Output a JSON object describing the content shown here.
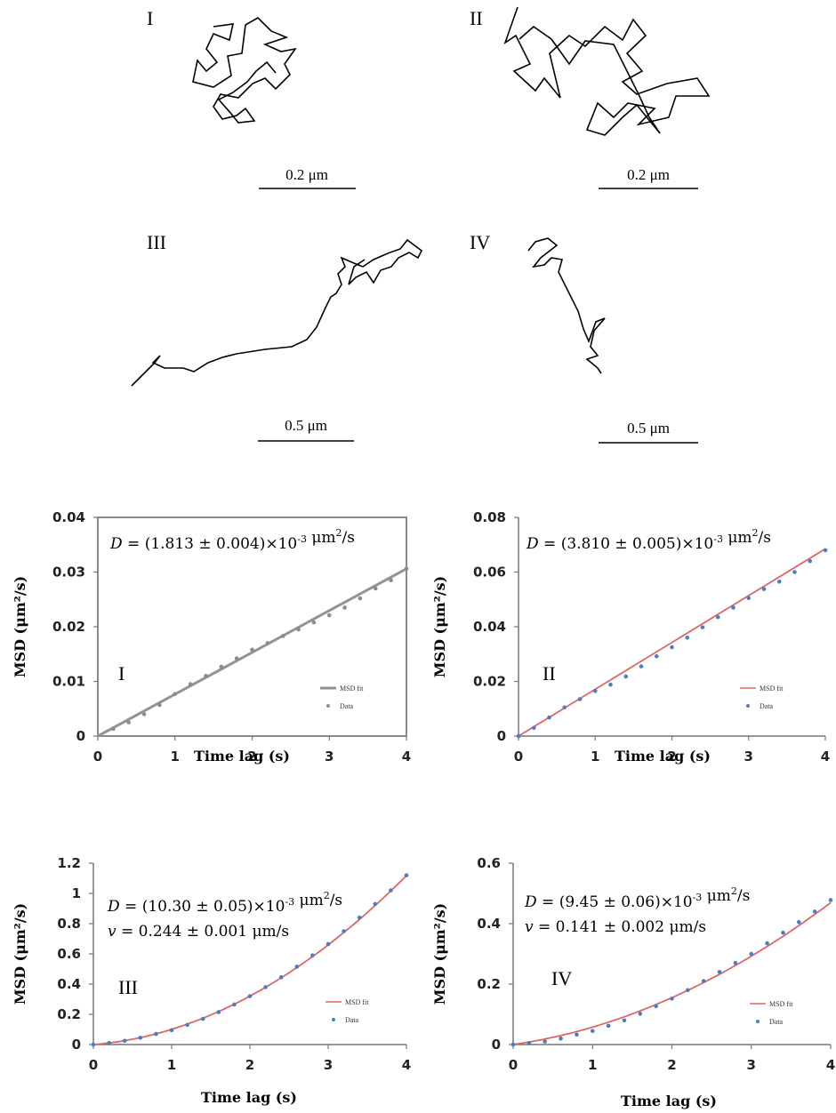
{
  "trajectories": [
    {
      "label": "I",
      "scale_bar": "0.2 μm"
    },
    {
      "label": "II",
      "scale_bar": "0.2 μm"
    },
    {
      "label": "III",
      "scale_bar": "0.5 μm"
    },
    {
      "label": "IV",
      "scale_bar": "0.5 μm"
    }
  ],
  "colors": {
    "fit_I": "#9a8f98",
    "data_I": "#8c8c8c",
    "fit": "#e06565",
    "data": "#4a7ec4",
    "trajectory": "#000000"
  },
  "chart_data": [
    {
      "type": "scatter",
      "panel": "I",
      "xlabel": "Time lag (s)",
      "ylabel": "MSD (μm²/s)",
      "xlim": [
        0,
        4
      ],
      "ylim": [
        0,
        0.04
      ],
      "xticks": [
        "0",
        "1",
        "2",
        "3",
        "4"
      ],
      "yticks": [
        "0",
        "0.01",
        "0.02",
        "0.03",
        "0.04"
      ],
      "annotation": [
        "D = (1.813 ± 0.004)×10",
        "-3",
        " μm",
        "2",
        "/s"
      ],
      "legend": [
        "MSD fit",
        "Data"
      ],
      "legend_position": "bottom-right",
      "fit": {
        "x": [
          0,
          4
        ],
        "y": [
          0,
          0.0306
        ]
      },
      "series": [
        {
          "name": "Data",
          "x": [
            0.2,
            0.4,
            0.6,
            0.8,
            1.0,
            1.2,
            1.4,
            1.6,
            1.8,
            2.0,
            2.2,
            2.4,
            2.6,
            2.8,
            3.0,
            3.2,
            3.4,
            3.6,
            3.8,
            4.0
          ],
          "y": [
            0.0013,
            0.0025,
            0.004,
            0.0057,
            0.0077,
            0.0095,
            0.011,
            0.0127,
            0.0142,
            0.0158,
            0.017,
            0.0183,
            0.0195,
            0.0208,
            0.0221,
            0.0235,
            0.0252,
            0.027,
            0.0285,
            0.0306
          ]
        }
      ]
    },
    {
      "type": "scatter",
      "panel": "II",
      "xlabel": "Time lag (s)",
      "ylabel": "MSD (μm²/s)",
      "xlim": [
        0,
        4
      ],
      "ylim": [
        0,
        0.08
      ],
      "xticks": [
        "0",
        "1",
        "2",
        "3",
        "4"
      ],
      "yticks": [
        "0",
        "0.02",
        "0.04",
        "0.06",
        "0.08"
      ],
      "annotation": [
        "D = (3.810 ± 0.005)×10",
        "-3",
        " μm",
        "2",
        "/s"
      ],
      "legend": [
        "MSD fit",
        "Data"
      ],
      "legend_position": "bottom-right",
      "fit": {
        "x": [
          0,
          4
        ],
        "y": [
          0,
          0.0685
        ]
      },
      "series": [
        {
          "name": "Data",
          "x": [
            0,
            0.2,
            0.4,
            0.6,
            0.8,
            1.0,
            1.2,
            1.4,
            1.6,
            1.8,
            2.0,
            2.2,
            2.4,
            2.6,
            2.8,
            3.0,
            3.2,
            3.4,
            3.6,
            3.8,
            4.0
          ],
          "y": [
            0,
            0.003,
            0.0068,
            0.0105,
            0.0135,
            0.0165,
            0.0188,
            0.0218,
            0.0255,
            0.0292,
            0.0325,
            0.036,
            0.0398,
            0.0435,
            0.047,
            0.0505,
            0.0538,
            0.0565,
            0.06,
            0.064,
            0.068
          ]
        }
      ]
    },
    {
      "type": "scatter",
      "panel": "III",
      "xlabel": "Time lag (s)",
      "ylabel": "MSD (μm²/s)",
      "xlim": [
        0,
        4
      ],
      "ylim": [
        0,
        1.2
      ],
      "xticks": [
        "0",
        "1",
        "2",
        "3",
        "4"
      ],
      "yticks": [
        "0",
        "0.2",
        "0.4",
        "0.6",
        "0.8",
        "1",
        "1.2"
      ],
      "annotation": [
        "D = (10.30 ± 0.05)×10",
        "-3",
        " μm",
        "2",
        "/s"
      ],
      "annotation2": "v = 0.244 ± 0.001 μm/s",
      "legend": [
        "MSD fit",
        "Data"
      ],
      "legend_position": "bottom-right",
      "fit": {
        "D": 0.0103,
        "v": 0.244
      },
      "series": [
        {
          "name": "Data",
          "x": [
            0,
            0.2,
            0.4,
            0.6,
            0.8,
            1.0,
            1.2,
            1.4,
            1.6,
            1.8,
            2.0,
            2.2,
            2.4,
            2.6,
            2.8,
            3.0,
            3.2,
            3.4,
            3.6,
            3.8,
            4.0
          ],
          "y": [
            0,
            0.01,
            0.025,
            0.045,
            0.07,
            0.095,
            0.13,
            0.17,
            0.215,
            0.265,
            0.32,
            0.38,
            0.445,
            0.515,
            0.59,
            0.665,
            0.75,
            0.84,
            0.93,
            1.02,
            1.12
          ]
        }
      ]
    },
    {
      "type": "scatter",
      "panel": "IV",
      "xlabel": "Time lag (s)",
      "ylabel": "MSD (μm²/s)",
      "xlim": [
        0,
        4
      ],
      "ylim": [
        0,
        0.6
      ],
      "xticks": [
        "0",
        "1",
        "2",
        "3",
        "4"
      ],
      "yticks": [
        "0",
        "0.2",
        "0.4",
        "0.6"
      ],
      "annotation": [
        "D = (9.45 ± 0.06)×10",
        "-3",
        " μm",
        "2",
        "/s"
      ],
      "annotation2": "v = 0.141 ± 0.002 μm/s",
      "legend": [
        "MSD fit",
        "Data"
      ],
      "legend_position": "bottom-right",
      "fit": {
        "D": 0.00945,
        "v": 0.141
      },
      "series": [
        {
          "name": "Data",
          "x": [
            0,
            0.2,
            0.4,
            0.6,
            0.8,
            1.0,
            1.2,
            1.4,
            1.6,
            1.8,
            2.0,
            2.2,
            2.4,
            2.6,
            2.8,
            3.0,
            3.2,
            3.4,
            3.6,
            3.8,
            4.0
          ],
          "y": [
            0,
            0.005,
            0.01,
            0.02,
            0.033,
            0.045,
            0.062,
            0.08,
            0.102,
            0.127,
            0.152,
            0.18,
            0.21,
            0.24,
            0.27,
            0.3,
            0.335,
            0.37,
            0.405,
            0.44,
            0.478
          ]
        }
      ]
    }
  ]
}
